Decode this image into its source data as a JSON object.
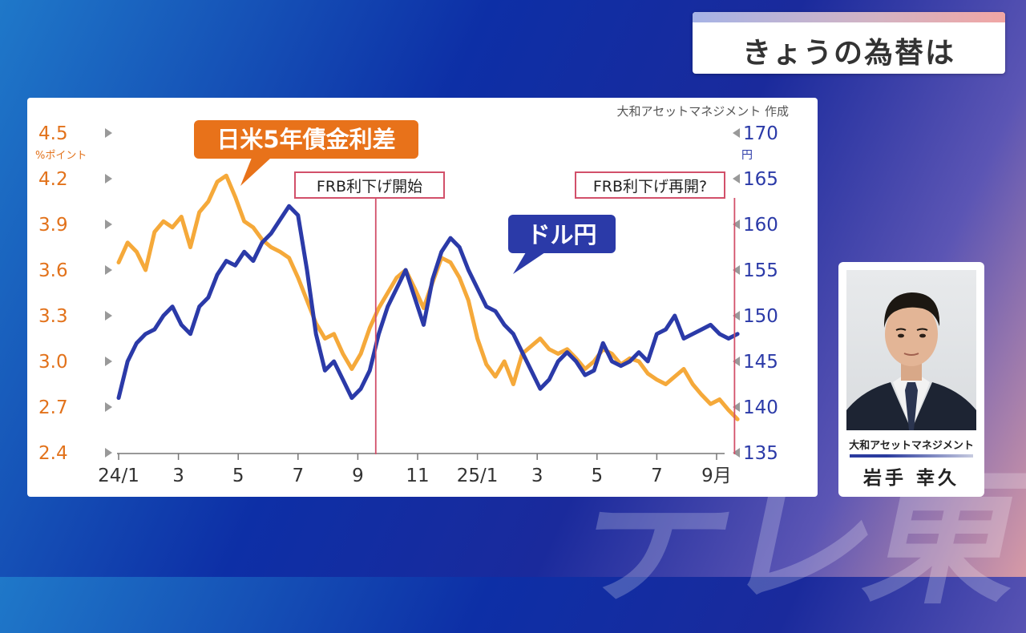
{
  "header": {
    "title": "きょうの為替は"
  },
  "watermark": "テレ東",
  "chart": {
    "source": "大和アセットマネジメント 作成",
    "left_unit": "%ポイント",
    "right_unit": "円",
    "left_series_label": "日米5年債金利差",
    "right_series_label": "ドル円",
    "event1": "FRB利下げ開始",
    "event2": "FRB利下げ再開?",
    "x_unit": "月"
  },
  "person": {
    "org": "大和アセットマネジメント",
    "name": "岩手 幸久"
  },
  "colors": {
    "orange": "#f5a93a",
    "blue": "#2b3aa8",
    "orange_text": "#e2721b",
    "blue_text": "#2b3aa8",
    "event": "#d2506a"
  },
  "chart_data": {
    "type": "line",
    "x_ticks": [
      "24/1",
      "3",
      "5",
      "7",
      "9",
      "11",
      "25/1",
      "3",
      "5",
      "7",
      "9月"
    ],
    "left_axis": {
      "label": "%ポイント",
      "ylim": [
        2.4,
        4.5
      ],
      "ticks": [
        "2.4",
        "2.7",
        "3.0",
        "3.3",
        "3.6",
        "3.9",
        "4.2",
        "4.5"
      ]
    },
    "right_axis": {
      "label": "円",
      "ylim": [
        135,
        170
      ],
      "ticks": [
        "135",
        "140",
        "145",
        "150",
        "155",
        "160",
        "165",
        "170"
      ]
    },
    "events": [
      {
        "label": "FRB利下げ開始",
        "x": 8.6
      },
      {
        "label": "FRB利下げ再開?",
        "x": 20.6
      }
    ],
    "series": [
      {
        "name": "日米5年債金利差",
        "axis": "left",
        "x": [
          0,
          0.3,
          0.6,
          0.9,
          1.2,
          1.5,
          1.8,
          2.1,
          2.4,
          2.7,
          3.0,
          3.3,
          3.6,
          3.9,
          4.2,
          4.5,
          4.8,
          5.1,
          5.4,
          5.7,
          6.0,
          6.3,
          6.6,
          6.9,
          7.2,
          7.5,
          7.8,
          8.1,
          8.4,
          8.7,
          9.0,
          9.3,
          9.6,
          9.9,
          10.2,
          10.5,
          10.8,
          11.1,
          11.4,
          11.7,
          12.0,
          12.3,
          12.6,
          12.9,
          13.2,
          13.5,
          13.8,
          14.1,
          14.4,
          14.7,
          15.0,
          15.3,
          15.6,
          15.9,
          16.2,
          16.5,
          16.8,
          17.1,
          17.4,
          17.7,
          18.0,
          18.3,
          18.6,
          18.9,
          19.2,
          19.5,
          19.8,
          20.1,
          20.4,
          20.7
        ],
        "values": [
          3.65,
          3.78,
          3.72,
          3.6,
          3.85,
          3.92,
          3.88,
          3.95,
          3.75,
          3.98,
          4.05,
          4.18,
          4.22,
          4.08,
          3.92,
          3.88,
          3.8,
          3.75,
          3.72,
          3.68,
          3.55,
          3.4,
          3.25,
          3.15,
          3.18,
          3.05,
          2.95,
          3.05,
          3.22,
          3.35,
          3.45,
          3.55,
          3.6,
          3.48,
          3.35,
          3.52,
          3.68,
          3.65,
          3.55,
          3.4,
          3.15,
          2.98,
          2.9,
          3.0,
          2.85,
          3.05,
          3.1,
          3.15,
          3.08,
          3.05,
          3.08,
          3.02,
          2.95,
          3.0,
          3.08,
          3.05,
          2.98,
          3.02,
          3.0,
          2.92,
          2.88,
          2.85,
          2.9,
          2.95,
          2.85,
          2.78,
          2.72,
          2.75,
          2.68,
          2.62
        ]
      },
      {
        "name": "ドル円",
        "axis": "right",
        "x": [
          0,
          0.3,
          0.6,
          0.9,
          1.2,
          1.5,
          1.8,
          2.1,
          2.4,
          2.7,
          3.0,
          3.3,
          3.6,
          3.9,
          4.2,
          4.5,
          4.8,
          5.1,
          5.4,
          5.7,
          6.0,
          6.3,
          6.6,
          6.9,
          7.2,
          7.5,
          7.8,
          8.1,
          8.4,
          8.7,
          9.0,
          9.3,
          9.6,
          9.9,
          10.2,
          10.5,
          10.8,
          11.1,
          11.4,
          11.7,
          12.0,
          12.3,
          12.6,
          12.9,
          13.2,
          13.5,
          13.8,
          14.1,
          14.4,
          14.7,
          15.0,
          15.3,
          15.6,
          15.9,
          16.2,
          16.5,
          16.8,
          17.1,
          17.4,
          17.7,
          18.0,
          18.3,
          18.6,
          18.9,
          19.2,
          19.5,
          19.8,
          20.1,
          20.4,
          20.7
        ],
        "values": [
          141,
          145,
          147,
          148,
          148.5,
          150,
          151,
          149,
          148,
          151,
          152,
          154.5,
          156,
          155.5,
          157,
          156,
          158,
          159,
          160.5,
          162,
          161,
          155,
          148,
          144,
          145,
          143,
          141,
          142,
          144,
          148,
          151,
          153,
          155,
          152,
          149,
          154,
          157,
          158.5,
          157.5,
          155,
          153,
          151,
          150.5,
          149,
          148,
          146,
          144,
          142,
          143,
          145,
          146,
          145,
          143.5,
          144,
          147,
          145,
          144.5,
          145,
          146,
          145,
          148,
          148.5,
          150,
          147.5,
          148,
          148.5,
          149,
          148,
          147.5,
          148
        ]
      }
    ]
  }
}
